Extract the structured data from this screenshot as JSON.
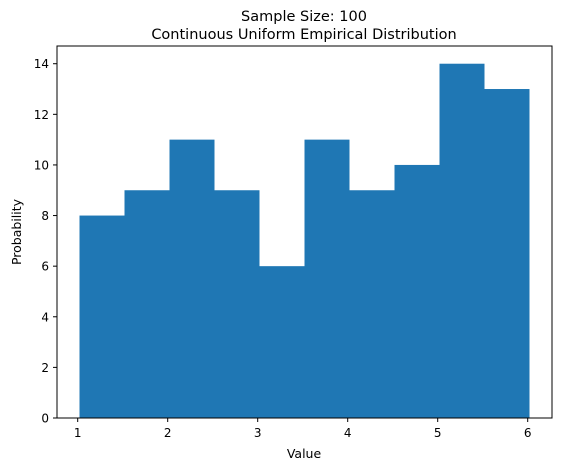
{
  "chart_data": {
    "type": "bar",
    "title": "Sample Size: 100",
    "subtitle": "Continuous Uniform Empirical Distribution",
    "xlabel": "Value",
    "ylabel": "Probability",
    "bins": [
      {
        "start": 1.02,
        "end": 1.52,
        "count": 8
      },
      {
        "start": 1.52,
        "end": 2.02,
        "count": 9
      },
      {
        "start": 2.02,
        "end": 2.52,
        "count": 11
      },
      {
        "start": 2.52,
        "end": 3.02,
        "count": 9
      },
      {
        "start": 3.02,
        "end": 3.52,
        "count": 6
      },
      {
        "start": 3.52,
        "end": 4.02,
        "count": 11
      },
      {
        "start": 4.02,
        "end": 4.52,
        "count": 9
      },
      {
        "start": 4.52,
        "end": 5.02,
        "count": 10
      },
      {
        "start": 5.02,
        "end": 5.52,
        "count": 14
      },
      {
        "start": 5.52,
        "end": 6.02,
        "count": 13
      }
    ],
    "xlim": [
      0.77,
      6.27
    ],
    "ylim": [
      0,
      14.7
    ],
    "xticks": [
      1,
      2,
      3,
      4,
      5,
      6
    ],
    "yticks": [
      0,
      2,
      4,
      6,
      8,
      10,
      12,
      14
    ],
    "bar_color": "#1f77b4",
    "grid": false,
    "legend": "none"
  }
}
